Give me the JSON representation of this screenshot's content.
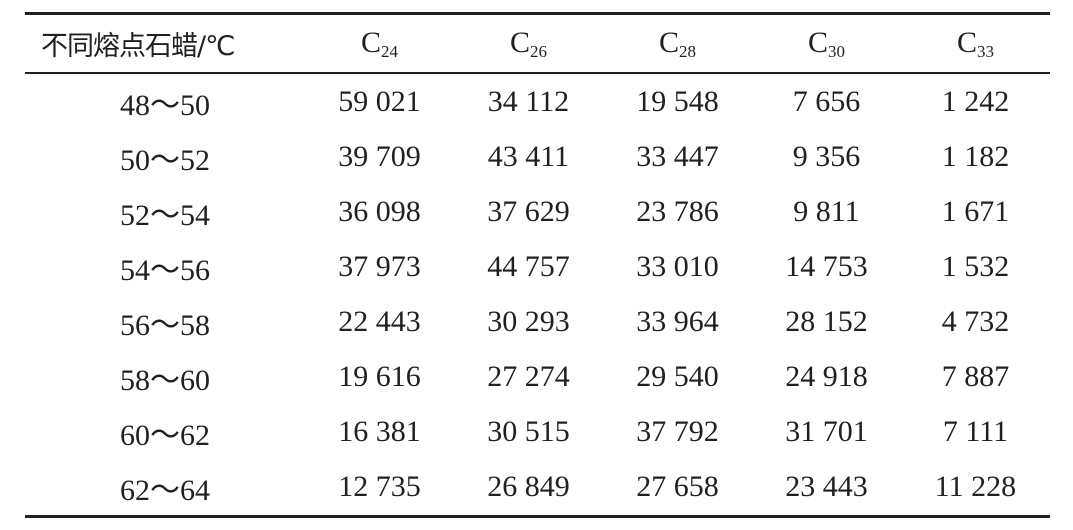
{
  "table": {
    "header_first": "不同熔点石蜡/℃",
    "columns": [
      {
        "base": "C",
        "sub": "24"
      },
      {
        "base": "C",
        "sub": "26"
      },
      {
        "base": "C",
        "sub": "28"
      },
      {
        "base": "C",
        "sub": "30"
      },
      {
        "base": "C",
        "sub": "33"
      }
    ],
    "rows": [
      {
        "label": "48～50",
        "values": [
          "59 021",
          "34 112",
          "19 548",
          "7 656",
          "1 242"
        ]
      },
      {
        "label": "50～52",
        "values": [
          "39 709",
          "43 411",
          "33 447",
          "9 356",
          "1 182"
        ]
      },
      {
        "label": "52～54",
        "values": [
          "36 098",
          "37 629",
          "23 786",
          "9 811",
          "1 671"
        ]
      },
      {
        "label": "54～56",
        "values": [
          "37 973",
          "44 757",
          "33 010",
          "14 753",
          "1 532"
        ]
      },
      {
        "label": "56～58",
        "values": [
          "22 443",
          "30 293",
          "33 964",
          "28 152",
          "4 732"
        ]
      },
      {
        "label": "58～60",
        "values": [
          "19 616",
          "27 274",
          "29 540",
          "24 918",
          "7 887"
        ]
      },
      {
        "label": "60～62",
        "values": [
          "16 381",
          "30 515",
          "37 792",
          "31 701",
          "7 111"
        ]
      },
      {
        "label": "62～64",
        "values": [
          "12 735",
          "26 849",
          "27 658",
          "23 443",
          "11 228"
        ]
      }
    ]
  }
}
